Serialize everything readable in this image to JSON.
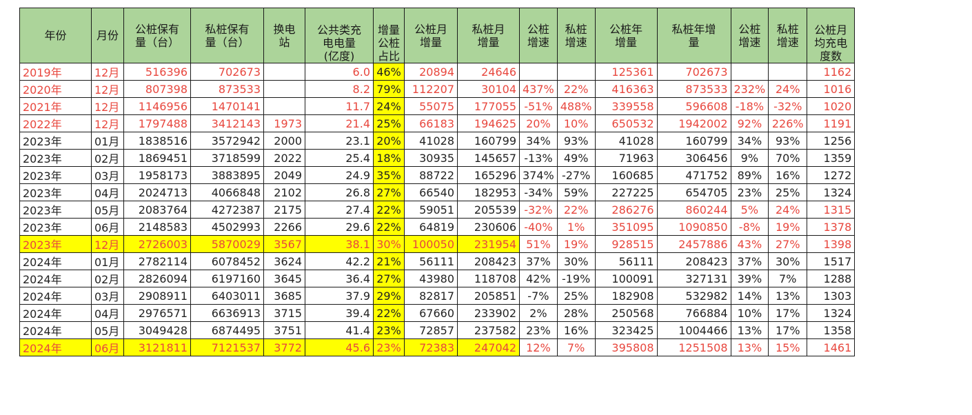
{
  "headers": [
    "年份",
    "月份",
    "公桩保有量（台）",
    "私桩保有量（台）",
    "换电站",
    "公共类充电电量（亿度）",
    "增量公桩占比",
    "公桩月增量",
    "私桩月增量",
    "公桩增速",
    "私桩增速",
    "公桩年增量",
    "私桩年增量",
    "公桩增速",
    "私桩增速",
    "公桩月均充电度数"
  ],
  "header_lines": [
    [
      "年份"
    ],
    [
      "月份"
    ],
    [
      "公桩保有",
      "量（台）"
    ],
    [
      "私桩保有",
      "量（台）"
    ],
    [
      "换电",
      "站"
    ],
    [
      "公共类充",
      "电电量",
      "(亿度)"
    ],
    [
      "增量",
      "公桩",
      "占比"
    ],
    [
      "公桩月",
      "增量"
    ],
    [
      "私桩月",
      "增量"
    ],
    [
      "公桩",
      "增速"
    ],
    [
      "私桩",
      "增速"
    ],
    [
      "公桩年",
      "增量"
    ],
    [
      "私桩年增",
      "量"
    ],
    [
      "公桩",
      "增速"
    ],
    [
      "私桩",
      "增速"
    ],
    [
      "公桩月",
      "均充电",
      "度数"
    ]
  ],
  "rows": [
    [
      "2019年",
      "12月",
      "516396",
      "702673",
      "",
      "6.0",
      "46%",
      "20894",
      "24646",
      "",
      "",
      "125361",
      "702673",
      "",
      "",
      "1162"
    ],
    [
      "2020年",
      "12月",
      "807398",
      "873533",
      "",
      "8.2",
      "79%",
      "112207",
      "30104",
      "437%",
      "22%",
      "416363",
      "873533",
      "232%",
      "24%",
      "1016"
    ],
    [
      "2021年",
      "12月",
      "1146956",
      "1470141",
      "",
      "11.7",
      "24%",
      "55075",
      "177055",
      "-51%",
      "488%",
      "339558",
      "596608",
      "-18%",
      "-32%",
      "1020"
    ],
    [
      "2022年",
      "12月",
      "1797488",
      "3412143",
      "1973",
      "21.4",
      "25%",
      "66183",
      "194625",
      "20%",
      "10%",
      "650532",
      "1942002",
      "92%",
      "226%",
      "1191"
    ],
    [
      "2023年",
      "01月",
      "1838516",
      "3572942",
      "2000",
      "23.1",
      "20%",
      "41028",
      "160799",
      "34%",
      "93%",
      "41028",
      "160799",
      "34%",
      "93%",
      "1256"
    ],
    [
      "2023年",
      "02月",
      "1869451",
      "3718599",
      "2022",
      "25.4",
      "18%",
      "30935",
      "145657",
      "-13%",
      "49%",
      "71963",
      "306456",
      "9%",
      "70%",
      "1359"
    ],
    [
      "2023年",
      "03月",
      "1958173",
      "3883895",
      "2049",
      "24.9",
      "35%",
      "88722",
      "165296",
      "374%",
      "-27%",
      "160685",
      "471752",
      "89%",
      "16%",
      "1272"
    ],
    [
      "2023年",
      "04月",
      "2024713",
      "4066848",
      "2102",
      "26.8",
      "27%",
      "66540",
      "182953",
      "-34%",
      "59%",
      "227225",
      "654705",
      "23%",
      "25%",
      "1324"
    ],
    [
      "2023年",
      "05月",
      "2083764",
      "4272387",
      "2175",
      "27.4",
      "22%",
      "59051",
      "205539",
      "-32%",
      "22%",
      "286276",
      "860244",
      "5%",
      "24%",
      "1315"
    ],
    [
      "2023年",
      "06月",
      "2148583",
      "4502993",
      "2266",
      "29.6",
      "22%",
      "64819",
      "230606",
      "-40%",
      "1%",
      "351095",
      "1090850",
      "-8%",
      "19%",
      "1378"
    ],
    [
      "2023年",
      "12月",
      "2726003",
      "5870029",
      "3567",
      "38.1",
      "30%",
      "100050",
      "231954",
      "51%",
      "19%",
      "928515",
      "2457886",
      "43%",
      "27%",
      "1398"
    ],
    [
      "2024年",
      "01月",
      "2782114",
      "6078452",
      "3624",
      "42.2",
      "21%",
      "56111",
      "208423",
      "37%",
      "30%",
      "56111",
      "208423",
      "37%",
      "30%",
      "1517"
    ],
    [
      "2024年",
      "02月",
      "2826094",
      "6197160",
      "3645",
      "36.4",
      "27%",
      "43980",
      "118708",
      "42%",
      "-19%",
      "100091",
      "327131",
      "39%",
      "7%",
      "1288"
    ],
    [
      "2024年",
      "03月",
      "2908911",
      "6403011",
      "3685",
      "37.9",
      "29%",
      "82817",
      "205851",
      "-7%",
      "25%",
      "182908",
      "532982",
      "14%",
      "13%",
      "1303"
    ],
    [
      "2024年",
      "04月",
      "2976571",
      "6636913",
      "3715",
      "39.4",
      "22%",
      "67660",
      "233902",
      "2%",
      "28%",
      "250568",
      "766884",
      "10%",
      "17%",
      "1324"
    ],
    [
      "2024年",
      "05月",
      "3049428",
      "6874495",
      "3751",
      "41.4",
      "23%",
      "72857",
      "237582",
      "23%",
      "16%",
      "323425",
      "1004466",
      "13%",
      "17%",
      "1358"
    ],
    [
      "2024年",
      "06月",
      "3121811",
      "7121537",
      "3772",
      "45.6",
      "23%",
      "72383",
      "247042",
      "12%",
      "7%",
      "395808",
      "1251508",
      "13%",
      "15%",
      "1461"
    ]
  ],
  "colors": {
    "header_bg": "#acd49a",
    "highlight": "#ffff00",
    "red_text": "#e8473e",
    "black_text": "#222222"
  }
}
